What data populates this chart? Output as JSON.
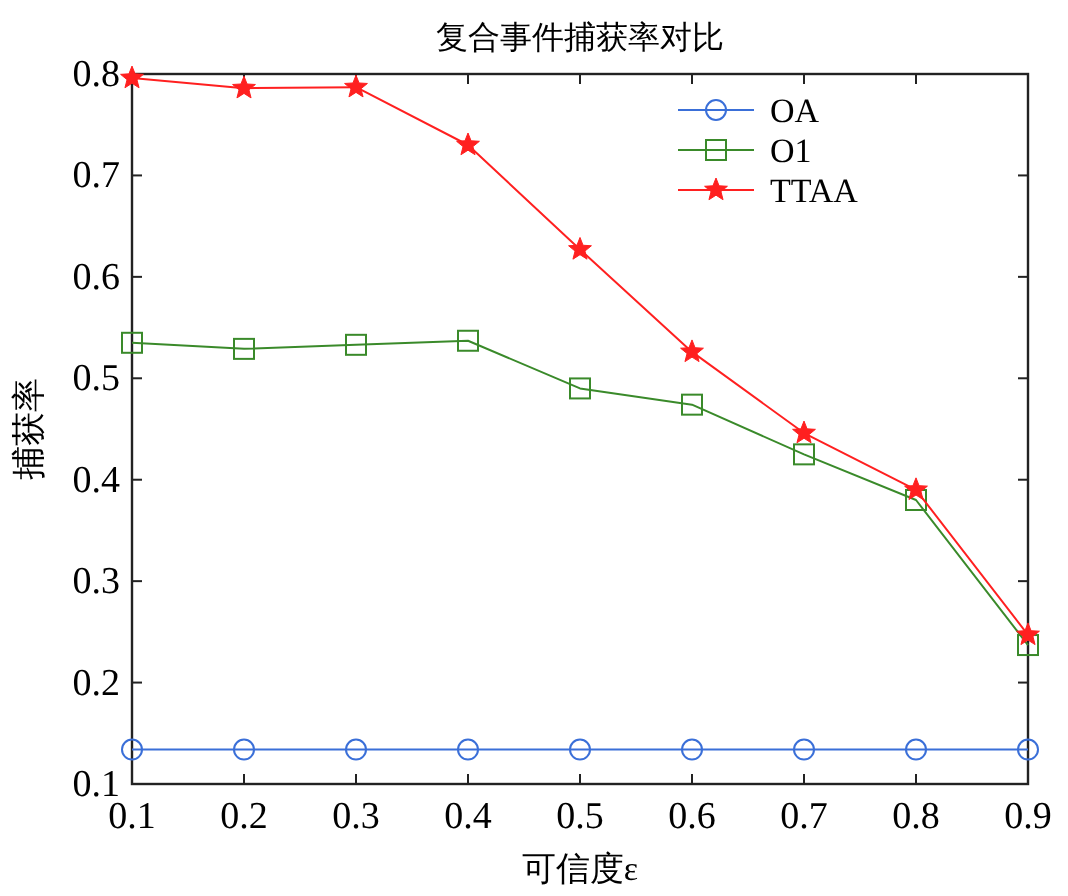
{
  "chart_data": {
    "type": "line",
    "title": "复合事件捕获率对比",
    "xlabel": "可信度ε",
    "ylabel": "捕获率",
    "x": [
      0.1,
      0.2,
      0.3,
      0.4,
      0.5,
      0.6,
      0.7,
      0.8,
      0.9
    ],
    "series": [
      {
        "name": "OA",
        "color": "#3a6fd8",
        "marker": "circle",
        "values": [
          0.134,
          0.134,
          0.134,
          0.134,
          0.134,
          0.134,
          0.134,
          0.134,
          0.134
        ]
      },
      {
        "name": "O1",
        "color": "#3a8a2a",
        "marker": "square",
        "values": [
          0.535,
          0.529,
          0.533,
          0.537,
          0.49,
          0.474,
          0.425,
          0.38,
          0.237
        ]
      },
      {
        "name": "TTAA",
        "color": "#ff2020",
        "marker": "star",
        "values": [
          0.796,
          0.786,
          0.787,
          0.73,
          0.627,
          0.526,
          0.446,
          0.39,
          0.247
        ]
      }
    ],
    "xlim": [
      0.1,
      0.9
    ],
    "xticks": [
      0.1,
      0.2,
      0.3,
      0.4,
      0.5,
      0.6,
      0.7,
      0.8,
      0.9
    ],
    "ylim": [
      0.1,
      0.8
    ],
    "yticks": [
      0.1,
      0.2,
      0.3,
      0.4,
      0.5,
      0.6,
      0.7,
      0.8
    ],
    "grid": false,
    "legend": "top right",
    "line_style": "solid"
  }
}
